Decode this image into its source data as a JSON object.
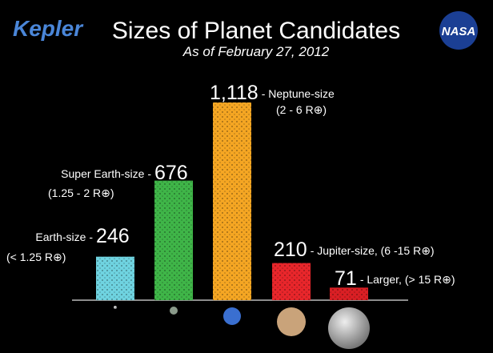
{
  "chart_data": {
    "type": "bar",
    "title": "Sizes of Planet Candidates",
    "subtitle": "As of February 27, 2012",
    "logo_left": "Kepler",
    "logo_right": "NASA",
    "categories": [
      "Earth-size -",
      "Super Earth-size -",
      "- Neptune-size",
      "- Jupiter-size, (6 -15 R⊕)",
      "- Larger, (> 15 R⊕)"
    ],
    "category_notes": [
      "(< 1.25 R⊕)",
      "(1.25 - 2 R⊕)",
      "(2 - 6 R⊕)",
      null,
      null
    ],
    "values": [
      246,
      676,
      1118,
      210,
      71
    ],
    "value_labels": [
      "246",
      "676",
      "1,118",
      "210",
      "71"
    ],
    "colors": [
      "#6fd3e0",
      "#3fb548",
      "#f5a623",
      "#e8262b",
      "#d91f24"
    ]
  }
}
